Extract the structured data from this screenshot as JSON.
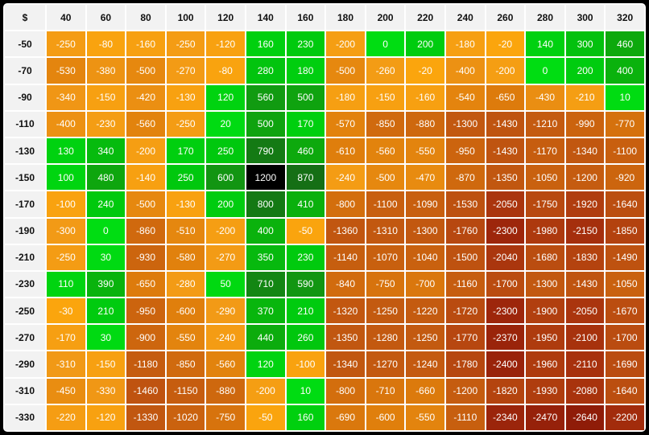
{
  "chart_data": {
    "type": "heatmap",
    "title": "",
    "corner_label": "$",
    "x_labels": [
      "40",
      "60",
      "80",
      "100",
      "120",
      "140",
      "160",
      "180",
      "200",
      "220",
      "240",
      "260",
      "280",
      "300",
      "320"
    ],
    "y_labels": [
      "-50",
      "-70",
      "-90",
      "-110",
      "-130",
      "-150",
      "-170",
      "-190",
      "-210",
      "-230",
      "-250",
      "-270",
      "-290",
      "-310",
      "-330"
    ],
    "values": [
      [
        -250,
        -80,
        -160,
        -250,
        -120,
        160,
        230,
        -200,
        0,
        200,
        -180,
        -20,
        140,
        300,
        460
      ],
      [
        -530,
        -380,
        -500,
        -270,
        -80,
        280,
        180,
        -500,
        -260,
        -20,
        -400,
        -200,
        0,
        200,
        400
      ],
      [
        -340,
        -150,
        -420,
        -130,
        120,
        560,
        500,
        -180,
        -150,
        -160,
        -540,
        -650,
        -430,
        -210,
        10
      ],
      [
        -400,
        -230,
        -560,
        -250,
        20,
        500,
        170,
        -570,
        -850,
        -880,
        -1300,
        -1430,
        -1210,
        -990,
        -770
      ],
      [
        130,
        340,
        -200,
        170,
        250,
        790,
        460,
        -610,
        -560,
        -550,
        -950,
        -1430,
        -1170,
        -1340,
        -1100
      ],
      [
        100,
        480,
        -140,
        250,
        600,
        1200,
        870,
        -240,
        -500,
        -470,
        -870,
        -1350,
        -1050,
        -1200,
        -920
      ],
      [
        -100,
        240,
        -500,
        -130,
        200,
        800,
        410,
        -800,
        -1100,
        -1090,
        -1530,
        -2050,
        -1750,
        -1920,
        -1640
      ],
      [
        -300,
        0,
        -860,
        -510,
        -200,
        400,
        -50,
        -1360,
        -1310,
        -1300,
        -1760,
        -2300,
        -1980,
        -2150,
        -1850
      ],
      [
        -250,
        30,
        -930,
        -580,
        -270,
        350,
        230,
        -1140,
        -1070,
        -1040,
        -1500,
        -2040,
        -1680,
        -1830,
        -1490
      ],
      [
        110,
        390,
        -650,
        -280,
        50,
        710,
        590,
        -840,
        -750,
        -700,
        -1160,
        -1700,
        -1300,
        -1430,
        -1050
      ],
      [
        -30,
        210,
        -950,
        -600,
        -290,
        370,
        210,
        -1320,
        -1250,
        -1220,
        -1720,
        -2300,
        -1900,
        -2050,
        -1670
      ],
      [
        -170,
        30,
        -900,
        -550,
        -240,
        440,
        260,
        -1350,
        -1280,
        -1250,
        -1770,
        -2370,
        -1950,
        -2100,
        -1700
      ],
      [
        -310,
        -150,
        -1180,
        -850,
        -560,
        120,
        -100,
        -1340,
        -1270,
        -1240,
        -1780,
        -2400,
        -1960,
        -2110,
        -1690
      ],
      [
        -450,
        -330,
        -1460,
        -1150,
        -880,
        -200,
        10,
        -800,
        -710,
        -660,
        -1200,
        -1820,
        -1930,
        -2080,
        -1640
      ],
      [
        -220,
        -120,
        -1330,
        -1020,
        -750,
        -50,
        160,
        -690,
        -600,
        -550,
        -1110,
        -2340,
        -2470,
        -2640,
        -2200
      ]
    ],
    "value_range": [
      -2640,
      1200
    ],
    "colorscale_stops": [
      [
        -2700,
        "#8c1a08"
      ],
      [
        -2300,
        "#9d260b"
      ],
      [
        -2000,
        "#ac380e"
      ],
      [
        -1700,
        "#ba4c10"
      ],
      [
        -1300,
        "#c25810"
      ],
      [
        -900,
        "#cd660e"
      ],
      [
        -600,
        "#e07f0c"
      ],
      [
        -300,
        "#f29a16"
      ],
      [
        -1,
        "#fca60c"
      ],
      [
        0,
        "#00dd12"
      ],
      [
        250,
        "#00c80e"
      ],
      [
        450,
        "#0daa0d"
      ],
      [
        600,
        "#129512"
      ],
      [
        900,
        "#156b15"
      ],
      [
        1200,
        "#000000"
      ]
    ],
    "cell_text_color": "#ffffff",
    "header_bg": "#f2f2f2",
    "header_text_color": "#111111",
    "grid_line_color": "#ffffff",
    "frame_color": "#000000"
  }
}
